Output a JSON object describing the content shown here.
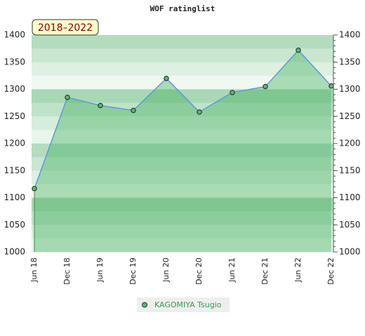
{
  "chart_data": {
    "type": "area",
    "title": "WOF ratinglist",
    "period_label": "2018–2022",
    "categories": [
      "Jun 18",
      "Dec 18",
      "Jun 19",
      "Dec 19",
      "Jun 20",
      "Dec 20",
      "Jun 21",
      "Dec 21",
      "Jun 22",
      "Dec 22"
    ],
    "series": [
      {
        "name": "KAGOMIYA Tsugio",
        "color": "#5b9bd5",
        "marker_color": "#5cb870",
        "values": [
          1117,
          1285,
          1270,
          1261,
          1320,
          1258,
          1294,
          1305,
          1372,
          1306
        ]
      }
    ],
    "ylim": [
      1000,
      1400
    ],
    "yticks": [
      1000,
      1050,
      1100,
      1150,
      1200,
      1250,
      1300,
      1350,
      1400
    ]
  }
}
